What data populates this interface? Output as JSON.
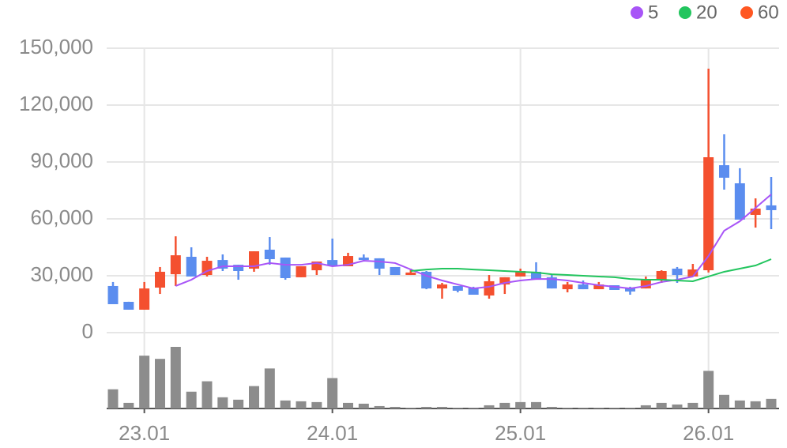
{
  "chart_data": {
    "type": "candlestick",
    "categories": [
      null,
      null,
      "23.01",
      null,
      null,
      null,
      null,
      null,
      null,
      null,
      null,
      null,
      null,
      null,
      "24.01",
      null,
      null,
      null,
      null,
      null,
      null,
      null,
      null,
      null,
      null,
      null,
      "25.01",
      null,
      null,
      null,
      null,
      null,
      null,
      null,
      null,
      null,
      null,
      null,
      "26.01",
      null,
      null,
      null,
      null
    ],
    "open": [
      24600,
      16250,
      12100,
      23750,
      30800,
      40000,
      30400,
      38300,
      35800,
      33750,
      43750,
      39600,
      29200,
      32900,
      38300,
      35000,
      39600,
      39200,
      34600,
      30400,
      32100,
      23300,
      24600,
      23750,
      19600,
      25400,
      29600,
      32100,
      29200,
      22900,
      25400,
      22900,
      25000,
      23750,
      23300,
      27500,
      33750,
      29600,
      32900,
      88300,
      78750,
      62100,
      67100
    ],
    "high": [
      26700,
      16300,
      26700,
      34600,
      50800,
      45000,
      40000,
      41250,
      35800,
      42900,
      50400,
      39600,
      35000,
      37500,
      49600,
      42100,
      41250,
      39200,
      34600,
      33750,
      32500,
      26250,
      24600,
      24200,
      30400,
      29200,
      33750,
      37100,
      30400,
      26700,
      27500,
      26700,
      25000,
      24200,
      29600,
      32900,
      34600,
      36250,
      139200,
      104600,
      86700,
      70800,
      82100
    ],
    "low": [
      15000,
      12100,
      12100,
      20400,
      24600,
      29600,
      29600,
      32500,
      27900,
      32100,
      35800,
      27900,
      29200,
      30400,
      35000,
      35000,
      37500,
      30400,
      30400,
      30400,
      22900,
      17900,
      21250,
      20000,
      17900,
      20400,
      29600,
      27900,
      23300,
      21250,
      22900,
      22900,
      22500,
      20000,
      23300,
      26250,
      26250,
      29600,
      31700,
      75400,
      59600,
      55400,
      54600
    ],
    "close": [
      15000,
      12100,
      23300,
      32100,
      40800,
      29600,
      37900,
      33750,
      32500,
      42900,
      38750,
      28750,
      35000,
      37500,
      35400,
      40400,
      38300,
      33750,
      30400,
      31700,
      23300,
      25400,
      22100,
      20000,
      27100,
      29200,
      32500,
      27900,
      23300,
      25400,
      22900,
      25400,
      22500,
      21700,
      27900,
      32500,
      30400,
      33300,
      92500,
      81700,
      59600,
      65400,
      64600
    ],
    "volume": [
      24,
      7,
      66,
      62,
      77,
      21,
      34,
      14,
      11,
      28,
      50,
      10,
      9,
      8,
      38,
      7,
      6,
      3,
      2,
      1,
      2,
      2,
      1,
      1,
      4,
      7,
      8,
      8,
      2,
      1,
      1,
      1,
      1,
      1,
      4,
      7,
      5,
      7,
      47,
      17,
      10,
      9,
      12
    ],
    "up_color": "#f4502f",
    "down_color": "#5b8def",
    "volume_color": "#8c8c8c",
    "series": [
      {
        "name": "5",
        "color": "#a855f7",
        "values": [
          null,
          null,
          null,
          null,
          24600,
          27900,
          32500,
          35000,
          35000,
          35000,
          36700,
          35800,
          35800,
          36700,
          35000,
          35800,
          37900,
          37500,
          36700,
          33300,
          30000,
          27500,
          25400,
          23300,
          24200,
          26250,
          27500,
          28300,
          28300,
          27500,
          26250,
          25000,
          24200,
          23300,
          24600,
          26700,
          27900,
          29600,
          40400,
          53750,
          58750,
          65800,
          72900
        ]
      },
      {
        "name": "20",
        "color": "#22c55e",
        "values": [
          null,
          null,
          null,
          null,
          null,
          null,
          null,
          null,
          null,
          null,
          null,
          null,
          null,
          null,
          null,
          null,
          null,
          null,
          null,
          32500,
          33300,
          33750,
          33750,
          33300,
          32900,
          32500,
          32100,
          31700,
          30800,
          30400,
          30000,
          29600,
          29200,
          28300,
          27900,
          27900,
          27500,
          27100,
          29600,
          32100,
          33750,
          35400,
          38750
        ]
      },
      {
        "name": "60",
        "color": "#ff5722",
        "values": [
          null,
          null,
          null,
          null,
          null,
          null,
          null,
          null,
          null,
          null,
          null,
          null,
          null,
          null,
          null,
          null,
          null,
          null,
          null,
          null,
          null,
          null,
          null,
          null,
          null,
          null,
          null,
          null,
          null,
          null,
          null,
          null,
          null,
          null,
          null,
          null,
          null,
          null,
          null,
          null,
          null,
          null,
          null
        ]
      }
    ],
    "ylim": [
      0,
      150000
    ],
    "yticks": [
      0,
      {
        "value": 30000,
        "label": "30,000"
      },
      {
        "value": 60000,
        "label": "60,000"
      },
      {
        "value": 90000,
        "label": "90,000"
      },
      {
        "value": 120000,
        "label": "120,000"
      },
      {
        "value": 150000,
        "label": "150,000"
      }
    ],
    "grid": true
  }
}
